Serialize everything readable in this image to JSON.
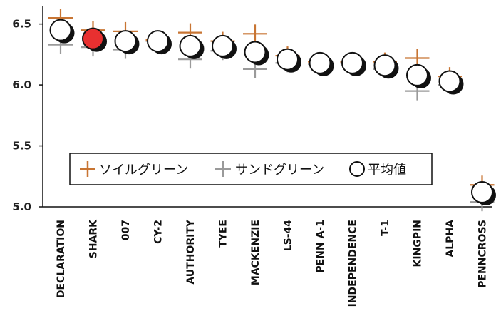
{
  "chart_data": {
    "type": "scatter",
    "title": "",
    "xlabel": "",
    "ylabel": "",
    "ylim": [
      5.0,
      6.65
    ],
    "yticks": [
      5.0,
      5.5,
      6.0,
      6.5
    ],
    "ytick_labels": [
      "5.0",
      "5.5",
      "6.0",
      "6.5"
    ],
    "grid": false,
    "legend_position": "center",
    "categories": [
      "DECLARATION",
      "SHARK",
      "007",
      "CY-2",
      "AUTHORITY",
      "TYEE",
      "MACKENZIE",
      "LS-44",
      "PENN A-1",
      "INDEPENDENCE",
      "T-1",
      "KINGPIN",
      "ALPHA",
      "PENNCROSS"
    ],
    "highlight_category": "SHARK",
    "series": [
      {
        "name": "ソイルグリーン",
        "marker": "plus",
        "color": "#c87533",
        "values": [
          6.55,
          6.45,
          6.44,
          6.37,
          6.43,
          6.36,
          6.42,
          6.24,
          6.19,
          6.19,
          6.19,
          6.22,
          6.07,
          5.18
        ]
      },
      {
        "name": "サンドグリーン",
        "marker": "plus",
        "color": "#9a9a9a",
        "values": [
          6.33,
          6.31,
          6.29,
          6.36,
          6.21,
          6.28,
          6.13,
          6.18,
          6.17,
          6.18,
          6.13,
          5.95,
          6.0,
          5.04
        ]
      },
      {
        "name": "平均値",
        "marker": "circle",
        "color": "#000000",
        "values": [
          6.45,
          6.38,
          6.36,
          6.36,
          6.32,
          6.32,
          6.27,
          6.21,
          6.18,
          6.18,
          6.16,
          6.08,
          6.03,
          5.12
        ]
      }
    ],
    "highlight_color": "#e83030"
  }
}
